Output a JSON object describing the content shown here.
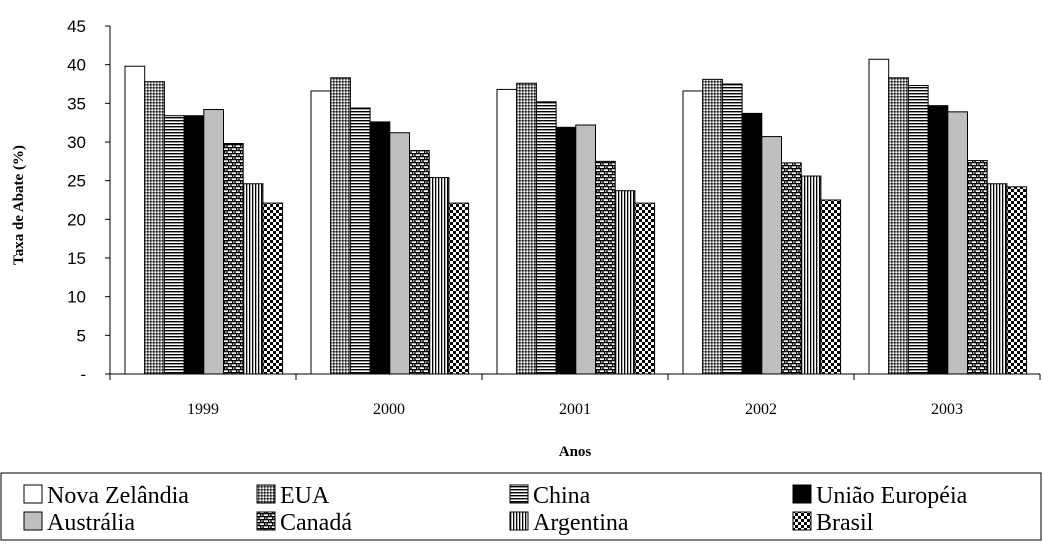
{
  "chart_data": {
    "type": "bar",
    "title": "",
    "xlabel": "Anos",
    "ylabel": "Taxa de Abate (%)",
    "ylim": [
      0,
      45
    ],
    "yticks": [
      "-",
      "5",
      "10",
      "15",
      "20",
      "25",
      "30",
      "35",
      "40",
      "45"
    ],
    "categories": [
      "1999",
      "2000",
      "2001",
      "2002",
      "2003"
    ],
    "legend_position": "bottom",
    "grid": false,
    "series": [
      {
        "name": "Nova Zelândia",
        "pattern": "white",
        "values": [
          39.8,
          36.6,
          36.8,
          36.6,
          40.7
        ]
      },
      {
        "name": "EUA",
        "pattern": "dense-dots",
        "values": [
          37.8,
          38.3,
          37.6,
          38.1,
          38.3
        ]
      },
      {
        "name": "China",
        "pattern": "horizontal-lines",
        "values": [
          33.4,
          34.4,
          35.2,
          37.5,
          37.3
        ]
      },
      {
        "name": "União Européia",
        "pattern": "black",
        "values": [
          33.4,
          32.6,
          31.9,
          33.7,
          34.7
        ]
      },
      {
        "name": "Austrália",
        "pattern": "gray",
        "values": [
          34.2,
          31.2,
          32.2,
          30.7,
          33.9
        ]
      },
      {
        "name": "Canadá",
        "pattern": "brick",
        "values": [
          29.8,
          28.9,
          27.5,
          27.3,
          27.6
        ]
      },
      {
        "name": "Argentina",
        "pattern": "vertical-lines",
        "values": [
          24.6,
          25.4,
          23.7,
          25.6,
          24.6
        ]
      },
      {
        "name": "Brasil",
        "pattern": "checker",
        "values": [
          22.1,
          22.1,
          22.1,
          22.5,
          24.2
        ]
      }
    ]
  }
}
